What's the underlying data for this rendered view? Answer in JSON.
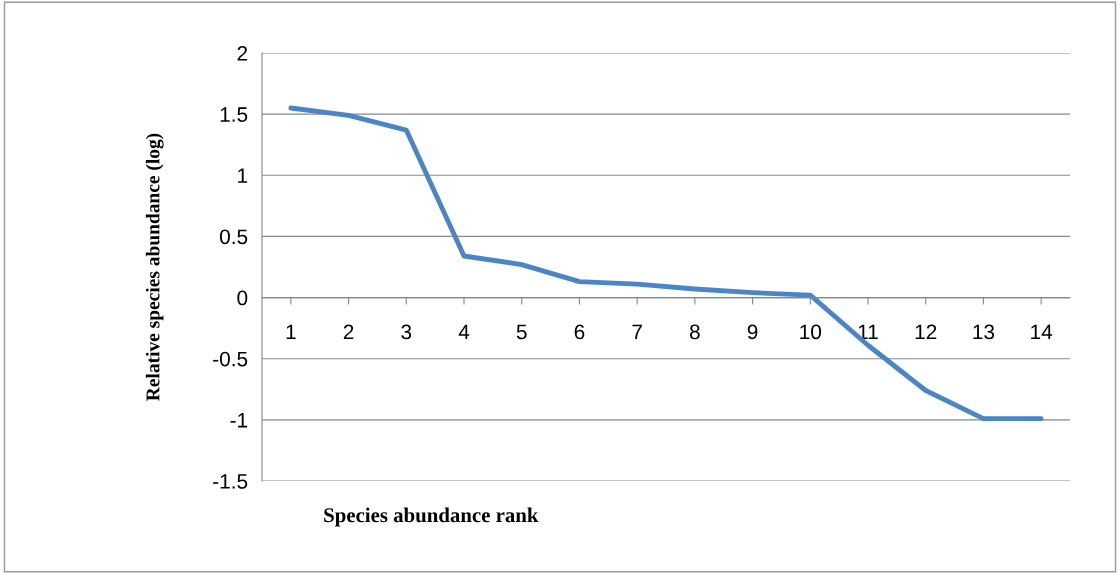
{
  "chart_data": {
    "type": "line",
    "xlabel": "Species abundance rank",
    "ylabel": "Relative species abundance (log)",
    "categories": [
      "1",
      "2",
      "3",
      "4",
      "5",
      "6",
      "7",
      "8",
      "9",
      "10",
      "11",
      "12",
      "13",
      "14"
    ],
    "series": [
      {
        "color": "#4a86c5",
        "values": [
          1.55,
          1.49,
          1.37,
          0.34,
          0.27,
          0.13,
          0.11,
          0.07,
          0.04,
          0.02,
          -0.39,
          -0.76,
          -0.99,
          -0.99
        ]
      }
    ],
    "ylim": [
      -1.5,
      2
    ],
    "yticks": [
      -1.5,
      -1,
      -0.5,
      0,
      0.5,
      1,
      1.5,
      2
    ],
    "grid": "y",
    "legend": false,
    "marker": "none",
    "line_style": "solid"
  }
}
